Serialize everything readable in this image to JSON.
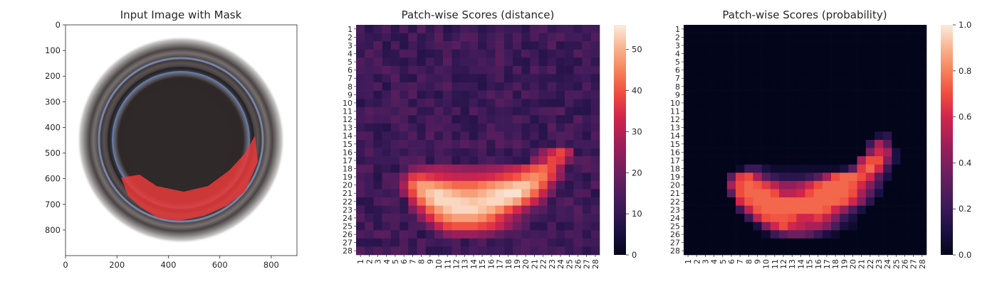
{
  "chart_data": [
    {
      "type": "image",
      "title": "Input Image with Mask",
      "xticks": [
        0,
        200,
        400,
        600,
        800
      ],
      "yticks": [
        0,
        100,
        200,
        300,
        400,
        500,
        600,
        700,
        800
      ],
      "xlim": [
        0,
        900
      ],
      "ylim": [
        900,
        0
      ],
      "mask_color": "#e8393a"
    },
    {
      "type": "heatmap",
      "title": "Patch-wise Scores (distance)",
      "rows": [
        "1",
        "2",
        "3",
        "4",
        "5",
        "6",
        "7",
        "8",
        "9",
        "10",
        "11",
        "12",
        "13",
        "14",
        "15",
        "16",
        "17",
        "18",
        "19",
        "20",
        "21",
        "22",
        "23",
        "24",
        "25",
        "26",
        "27",
        "28"
      ],
      "cols": [
        "1",
        "2",
        "3",
        "4",
        "5",
        "6",
        "7",
        "8",
        "9",
        "10",
        "11",
        "12",
        "13",
        "14",
        "15",
        "16",
        "17",
        "18",
        "19",
        "20",
        "21",
        "22",
        "23",
        "24",
        "25",
        "26",
        "27",
        "28"
      ],
      "colorbar": {
        "min": 0,
        "max": 56,
        "ticks": [
          0,
          10,
          20,
          30,
          40,
          50
        ]
      },
      "base_value": 12,
      "hotspots": [
        {
          "row": 16,
          "cols": [
            22,
            25
          ],
          "values": [
            25,
            32,
            38,
            30
          ]
        },
        {
          "row": 17,
          "cols": [
            21,
            25
          ],
          "values": [
            24,
            30,
            38,
            36,
            22
          ]
        },
        {
          "row": 18,
          "cols": [
            7,
            24
          ],
          "values": [
            22,
            25,
            27,
            28,
            27,
            26,
            25,
            25,
            25,
            26,
            27,
            30,
            32,
            36,
            40,
            42,
            38,
            26
          ]
        },
        {
          "row": 19,
          "cols": [
            6,
            24
          ],
          "values": [
            24,
            36,
            38,
            36,
            34,
            33,
            32,
            32,
            32,
            33,
            34,
            36,
            38,
            40,
            44,
            46,
            44,
            36,
            24
          ]
        },
        {
          "row": 20,
          "cols": [
            6,
            23
          ],
          "values": [
            28,
            42,
            48,
            48,
            46,
            44,
            42,
            42,
            42,
            44,
            46,
            48,
            50,
            52,
            52,
            48,
            40,
            26
          ]
        },
        {
          "row": 21,
          "cols": [
            6,
            23
          ],
          "values": [
            24,
            38,
            48,
            52,
            54,
            52,
            50,
            48,
            48,
            50,
            52,
            54,
            55,
            55,
            50,
            42,
            32,
            20
          ]
        },
        {
          "row": 22,
          "cols": [
            7,
            22
          ],
          "values": [
            30,
            42,
            50,
            54,
            54,
            54,
            53,
            52,
            53,
            54,
            54,
            52,
            48,
            40,
            32,
            22
          ]
        },
        {
          "row": 23,
          "cols": [
            7,
            21
          ],
          "values": [
            22,
            32,
            42,
            48,
            52,
            54,
            54,
            54,
            52,
            50,
            46,
            40,
            34,
            26,
            18
          ]
        },
        {
          "row": 24,
          "cols": [
            8,
            20
          ],
          "values": [
            24,
            34,
            42,
            46,
            48,
            48,
            48,
            46,
            42,
            36,
            30,
            24,
            18
          ]
        },
        {
          "row": 25,
          "cols": [
            9,
            20
          ],
          "values": [
            22,
            32,
            38,
            40,
            40,
            40,
            38,
            36,
            32,
            26,
            20,
            16
          ]
        },
        {
          "row": 26,
          "cols": [
            10,
            18
          ],
          "values": [
            18,
            24,
            26,
            26,
            26,
            24,
            22,
            18,
            15
          ]
        }
      ]
    },
    {
      "type": "heatmap",
      "title": "Patch-wise Scores (probability)",
      "rows": [
        "1",
        "2",
        "3",
        "4",
        "5",
        "6",
        "7",
        "8",
        "9",
        "10",
        "11",
        "12",
        "13",
        "14",
        "15",
        "16",
        "17",
        "18",
        "19",
        "20",
        "21",
        "22",
        "23",
        "24",
        "25",
        "26",
        "27",
        "28"
      ],
      "cols": [
        "1",
        "2",
        "3",
        "4",
        "5",
        "6",
        "7",
        "8",
        "9",
        "10",
        "11",
        "12",
        "13",
        "14",
        "15",
        "16",
        "17",
        "18",
        "19",
        "20",
        "21",
        "22",
        "23",
        "24",
        "25",
        "26",
        "27",
        "28"
      ],
      "colorbar": {
        "min": 0.0,
        "max": 1.0,
        "ticks": [
          "0.0",
          "0.2",
          "0.4",
          "0.6",
          "0.8",
          "1.0"
        ]
      },
      "base_value": 0.0,
      "hotspots": [
        {
          "row": 14,
          "cols": [
            23,
            24
          ],
          "values": [
            0.1,
            0.15
          ]
        },
        {
          "row": 15,
          "cols": [
            22,
            24
          ],
          "values": [
            0.2,
            0.5,
            0.3
          ]
        },
        {
          "row": 16,
          "cols": [
            22,
            25
          ],
          "values": [
            0.4,
            0.6,
            0.5,
            0.1
          ]
        },
        {
          "row": 17,
          "cols": [
            21,
            25
          ],
          "values": [
            0.5,
            0.7,
            0.7,
            0.4,
            0.1
          ]
        },
        {
          "row": 18,
          "cols": [
            7,
            24
          ],
          "values": [
            0.05,
            0.2,
            0.2,
            0.1,
            0.05,
            0.05,
            0.05,
            0.05,
            0.05,
            0.05,
            0.05,
            0.05,
            0.1,
            0.3,
            0.65,
            0.75,
            0.6,
            0.2
          ]
        },
        {
          "row": 19,
          "cols": [
            6,
            24
          ],
          "values": [
            0.3,
            0.65,
            0.7,
            0.5,
            0.3,
            0.2,
            0.15,
            0.15,
            0.15,
            0.2,
            0.3,
            0.5,
            0.7,
            0.75,
            0.75,
            0.7,
            0.6,
            0.3,
            0.1
          ]
        },
        {
          "row": 20,
          "cols": [
            6,
            23
          ],
          "values": [
            0.5,
            0.7,
            0.75,
            0.72,
            0.65,
            0.55,
            0.45,
            0.45,
            0.5,
            0.6,
            0.7,
            0.75,
            0.75,
            0.75,
            0.72,
            0.6,
            0.4,
            0.2
          ]
        },
        {
          "row": 21,
          "cols": [
            6,
            23
          ],
          "values": [
            0.3,
            0.7,
            0.75,
            0.75,
            0.75,
            0.7,
            0.55,
            0.55,
            0.6,
            0.7,
            0.75,
            0.75,
            0.75,
            0.75,
            0.7,
            0.5,
            0.3,
            0.1
          ]
        },
        {
          "row": 22,
          "cols": [
            7,
            22
          ],
          "values": [
            0.6,
            0.72,
            0.75,
            0.75,
            0.75,
            0.75,
            0.75,
            0.75,
            0.75,
            0.75,
            0.75,
            0.75,
            0.72,
            0.6,
            0.4,
            0.15
          ]
        },
        {
          "row": 23,
          "cols": [
            7,
            21
          ],
          "values": [
            0.2,
            0.55,
            0.72,
            0.75,
            0.75,
            0.75,
            0.75,
            0.75,
            0.75,
            0.75,
            0.72,
            0.6,
            0.45,
            0.25,
            0.1
          ]
        },
        {
          "row": 24,
          "cols": [
            8,
            20
          ],
          "values": [
            0.2,
            0.55,
            0.7,
            0.72,
            0.72,
            0.7,
            0.6,
            0.6,
            0.65,
            0.55,
            0.4,
            0.2,
            0.1
          ]
        },
        {
          "row": 25,
          "cols": [
            9,
            20
          ],
          "values": [
            0.1,
            0.4,
            0.6,
            0.7,
            0.6,
            0.55,
            0.5,
            0.5,
            0.4,
            0.25,
            0.1,
            0.05
          ]
        },
        {
          "row": 26,
          "cols": [
            10,
            18
          ],
          "values": [
            0.05,
            0.2,
            0.3,
            0.35,
            0.35,
            0.3,
            0.2,
            0.1,
            0.05
          ]
        }
      ]
    }
  ]
}
